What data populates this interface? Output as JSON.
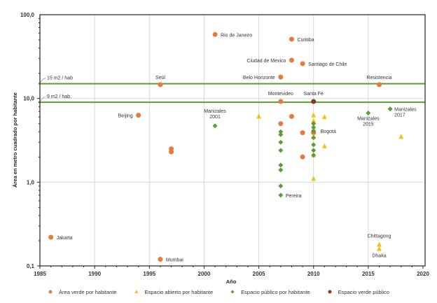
{
  "chart_data": {
    "type": "scatter",
    "title": "",
    "xlabel": "Año",
    "ylabel": "Área en metro cuadrado por habitante",
    "xlim": [
      1985,
      2020
    ],
    "ylim": [
      0.1,
      100
    ],
    "yscale": "log",
    "x_ticks": [
      1985,
      1990,
      1995,
      2000,
      2005,
      2010,
      2015,
      2020
    ],
    "x_tick_labels": [
      "1985",
      "1990",
      "1995",
      "2000",
      "2005",
      "2010",
      "2015",
      "2020"
    ],
    "y_ticks": [
      0.1,
      1,
      10,
      100
    ],
    "y_tick_labels": [
      "0,1",
      "1,0",
      "10,0",
      "100,0"
    ],
    "grid": "vertical at major x ticks, horizontal at 1",
    "reference_lines": [
      {
        "label": "15 m2 / hab",
        "value": 15,
        "color": "#5a9e32"
      },
      {
        "label": "9 m2 / hab.",
        "value": 9,
        "color": "#5a9e32"
      }
    ],
    "legend_position": "bottom",
    "series": [
      {
        "name": "Área verde por habitante",
        "marker": "circle",
        "color": "#e8793a",
        "points": [
          {
            "x": 1986,
            "y": 0.22,
            "label": "Jakarta"
          },
          {
            "x": 1996,
            "y": 0.12,
            "label": "Mumbai"
          },
          {
            "x": 1994,
            "y": 6.3,
            "label": "Beijing"
          },
          {
            "x": 1996,
            "y": 14.6,
            "label": "Seúl"
          },
          {
            "x": 1997,
            "y": 2.5,
            "label": ""
          },
          {
            "x": 1997,
            "y": 2.3,
            "label": ""
          },
          {
            "x": 2001,
            "y": 58,
            "label": "Rio de Janeiro"
          },
          {
            "x": 2008,
            "y": 51,
            "label": "Curitiba"
          },
          {
            "x": 2008,
            "y": 28.6,
            "label": "Ciudad de Mexico"
          },
          {
            "x": 2009,
            "y": 26,
            "label": "Santiago de Chile"
          },
          {
            "x": 2007,
            "y": 18,
            "label": "Belo Horizonte"
          },
          {
            "x": 2016,
            "y": 14.6,
            "label": "Resistencia"
          },
          {
            "x": 2007,
            "y": 9.2,
            "label": "Montevideo"
          },
          {
            "x": 2008,
            "y": 6.1,
            "label": ""
          },
          {
            "x": 2007,
            "y": 5.0,
            "label": ""
          },
          {
            "x": 2009,
            "y": 3.9,
            "label": ""
          },
          {
            "x": 2010,
            "y": 3.9,
            "label": ""
          },
          {
            "x": 2009,
            "y": 2.0,
            "label": ""
          }
        ]
      },
      {
        "name": "Espacio abierto por habitante",
        "marker": "triangle",
        "color": "#f5c018",
        "points": [
          {
            "x": 2005,
            "y": 6.1,
            "label": ""
          },
          {
            "x": 2010,
            "y": 6.3,
            "label": ""
          },
          {
            "x": 2010,
            "y": 5.4,
            "label": ""
          },
          {
            "x": 2010,
            "y": 3.5,
            "label": ""
          },
          {
            "x": 2010,
            "y": 2.1,
            "label": ""
          },
          {
            "x": 2010,
            "y": 1.1,
            "label": ""
          },
          {
            "x": 2011,
            "y": 6.0,
            "label": ""
          },
          {
            "x": 2011,
            "y": 2.7,
            "label": ""
          },
          {
            "x": 2016,
            "y": 0.18,
            "label": "Chittagong"
          },
          {
            "x": 2016,
            "y": 0.16,
            "label": "Dhaka"
          },
          {
            "x": 2018,
            "y": 3.5,
            "label": ""
          }
        ]
      },
      {
        "name": "Espacio público por habitante",
        "marker": "diamond",
        "color": "#5a9e32",
        "points": [
          {
            "x": 2001,
            "y": 4.7,
            "label": "Manizales\n2001"
          },
          {
            "x": 2007,
            "y": 4.0,
            "label": ""
          },
          {
            "x": 2007,
            "y": 3.7,
            "label": ""
          },
          {
            "x": 2007,
            "y": 3.0,
            "label": ""
          },
          {
            "x": 2007,
            "y": 2.4,
            "label": ""
          },
          {
            "x": 2007,
            "y": 1.6,
            "label": ""
          },
          {
            "x": 2007,
            "y": 1.4,
            "label": ""
          },
          {
            "x": 2007,
            "y": 0.9,
            "label": ""
          },
          {
            "x": 2007,
            "y": 0.7,
            "label": "Pereira"
          },
          {
            "x": 2010,
            "y": 5.0,
            "label": ""
          },
          {
            "x": 2010,
            "y": 4.5,
            "label": ""
          },
          {
            "x": 2010,
            "y": 4.1,
            "label": "Bogotá"
          },
          {
            "x": 2010,
            "y": 3.4,
            "label": ""
          },
          {
            "x": 2010,
            "y": 2.8,
            "label": ""
          },
          {
            "x": 2010,
            "y": 2.4,
            "label": ""
          },
          {
            "x": 2010,
            "y": 2.1,
            "label": ""
          },
          {
            "x": 2015,
            "y": 6.7,
            "label": "Manizales\n2015"
          },
          {
            "x": 2017,
            "y": 7.5,
            "label": "Manizales\n2017"
          }
        ]
      },
      {
        "name": "Espacio verde público",
        "marker": "circle",
        "color": "#8b3a1a",
        "points": [
          {
            "x": 2010,
            "y": 9.2,
            "label": "Santa Fé"
          }
        ]
      }
    ]
  }
}
